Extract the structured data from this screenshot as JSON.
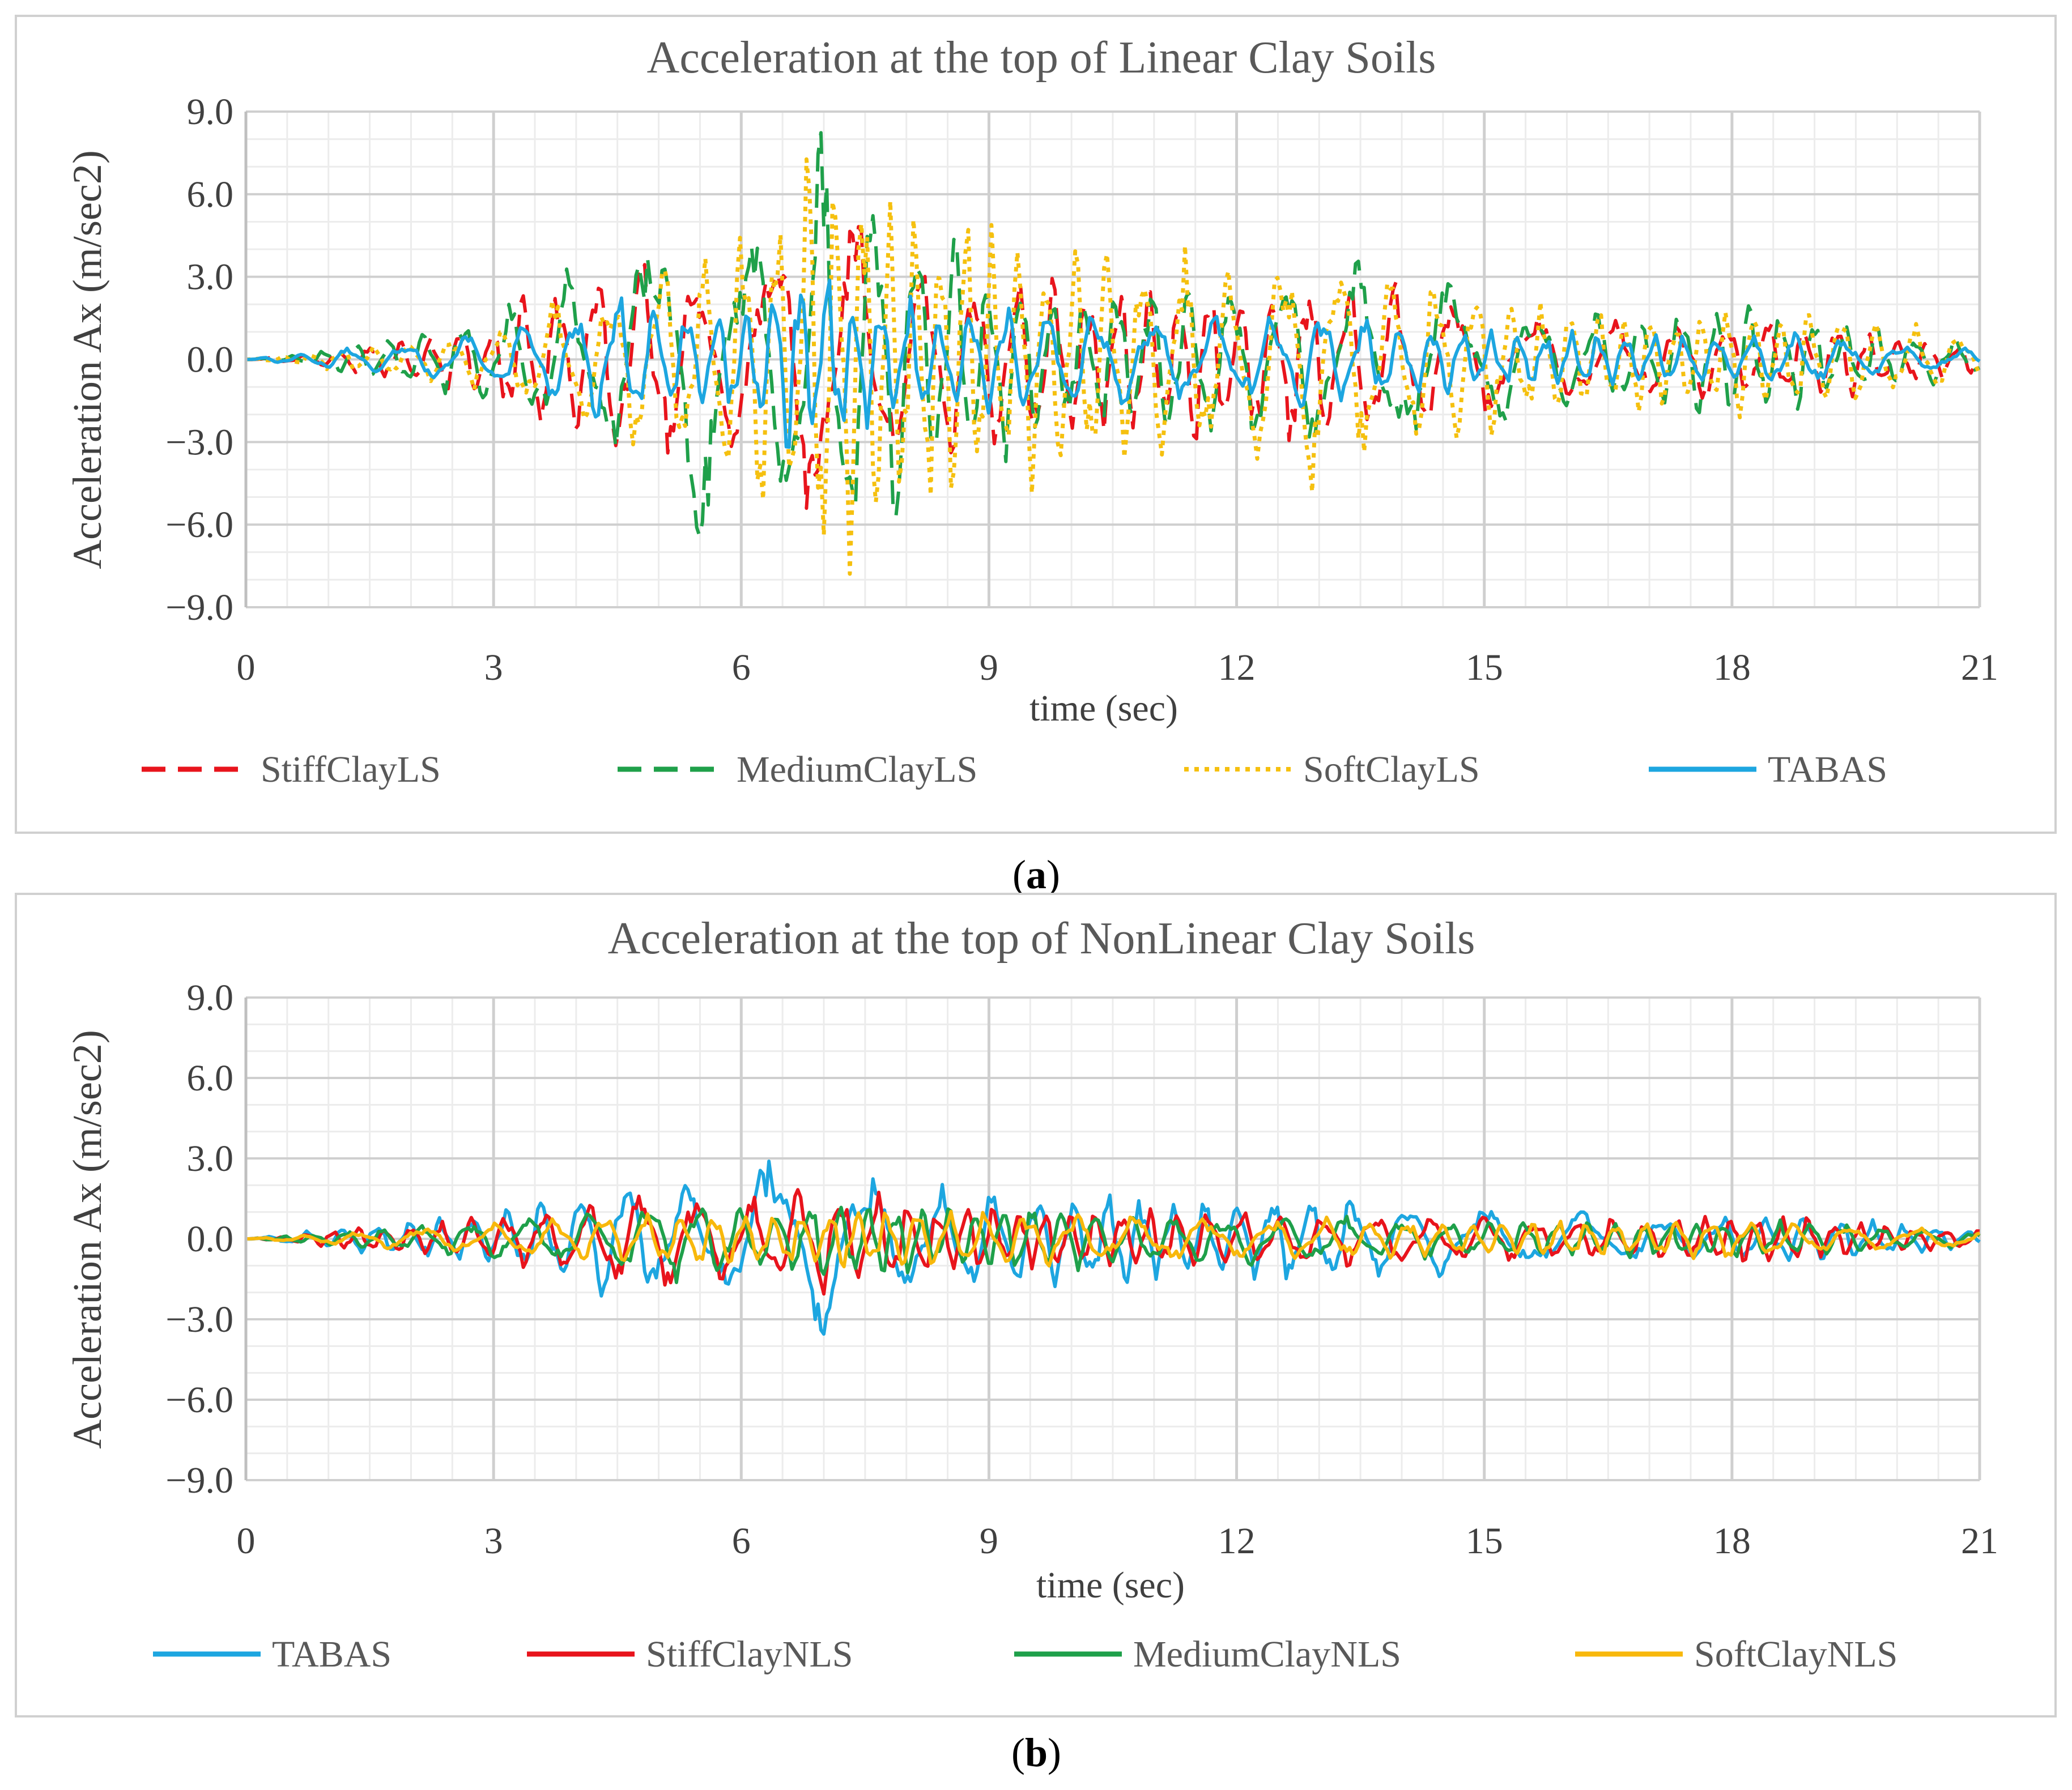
{
  "figure": {
    "panels": [
      {
        "caption_letter": "a"
      },
      {
        "caption_letter": "b"
      }
    ]
  },
  "chart_data": [
    {
      "type": "line",
      "title": "Acceleration at the top of Linear Clay Soils",
      "xlabel": "time (sec)",
      "ylabel": "Acceleration Ax (m/sec2)",
      "xlim": [
        0,
        21
      ],
      "ylim": [
        -9,
        9
      ],
      "x_ticks": [
        "0",
        "3",
        "6",
        "9",
        "12",
        "15",
        "18",
        "21"
      ],
      "y_ticks": [
        "9.0",
        "6.0",
        "3.0",
        "0.0",
        "−3.0",
        "−6.0",
        "−9.0"
      ],
      "grid": true,
      "legend_position": "bottom",
      "series": [
        {
          "name": "StiffClayLS",
          "color": "#E8141C",
          "dash": "dashed",
          "envelope": {
            "t": [
              0,
              0.5,
              1,
              2,
              3,
              3.5,
              4,
              4.5,
              5,
              5.5,
              6,
              6.5,
              7,
              7.5,
              8,
              8.5,
              9,
              10,
              11,
              12,
              13,
              14,
              15,
              16,
              17,
              18,
              19,
              20,
              21
            ],
            "a": [
              0,
              0.1,
              0.35,
              0.7,
              1.4,
              2.4,
              2.8,
              3.2,
              3.6,
              3.2,
              3.5,
              4.5,
              5.6,
              4.6,
              3.8,
              3.2,
              2.9,
              2.8,
              2.6,
              2.6,
              2.8,
              2.4,
              1.9,
              1.4,
              1.3,
              1.4,
              1.4,
              0.9,
              0.5
            ]
          }
        },
        {
          "name": "MediumClayLS",
          "color": "#1FA04A",
          "dash": "dashed",
          "envelope": {
            "t": [
              0,
              0.5,
              1,
              2,
              3,
              3.5,
              4,
              4.5,
              5,
              5.5,
              6,
              6.5,
              7,
              7.5,
              8,
              8.5,
              9,
              10,
              11,
              12,
              13,
              14,
              15,
              16,
              17,
              18,
              19,
              20,
              21
            ],
            "a": [
              0,
              0.1,
              0.35,
              0.9,
              1.5,
              2.4,
              2.8,
              3.5,
              4.8,
              5.2,
              4.2,
              5.0,
              7.0,
              6.0,
              5.2,
              4.0,
              3.2,
              2.6,
              2.7,
              2.6,
              3.2,
              3.1,
              2.2,
              1.6,
              1.5,
              1.9,
              1.5,
              1.0,
              0.6
            ]
          }
        },
        {
          "name": "SoftClayLS",
          "color": "#F5C00F",
          "dash": "dotted",
          "envelope": {
            "t": [
              0,
              0.5,
              1,
              2,
              3,
              3.5,
              4,
              4.5,
              5,
              5.5,
              6,
              6.5,
              7,
              7.5,
              8,
              8.5,
              9,
              10,
              11,
              12,
              13,
              14,
              15,
              16,
              17,
              18,
              19,
              20,
              21
            ],
            "a": [
              0,
              0.1,
              0.3,
              0.6,
              1.0,
              1.7,
              2.0,
              2.4,
              3.4,
              3.5,
              4.5,
              5.2,
              7.8,
              7.2,
              5.0,
              5.8,
              4.5,
              4.0,
              3.6,
              3.2,
              4.0,
              2.9,
              2.6,
              1.8,
              1.7,
              1.9,
              1.8,
              1.2,
              0.8
            ]
          }
        },
        {
          "name": "TABAS",
          "color": "#1DA6E0",
          "dash": "solid",
          "envelope": {
            "t": [
              0,
              0.5,
              1,
              2,
              3,
              3.5,
              4,
              4.5,
              5,
              5.5,
              6,
              6.5,
              7,
              7.5,
              8,
              8.5,
              9,
              10,
              11,
              12,
              13,
              14,
              15,
              16,
              17,
              18,
              19,
              20,
              21
            ],
            "a": [
              0,
              0.15,
              0.35,
              0.6,
              0.9,
              1.3,
              1.6,
              2.2,
              1.8,
              1.7,
              2.0,
              3.1,
              2.9,
              2.3,
              2.0,
              1.6,
              1.8,
              1.6,
              1.4,
              1.4,
              1.6,
              1.3,
              1.0,
              0.9,
              0.8,
              0.8,
              0.8,
              0.5,
              0.3
            ]
          }
        }
      ]
    },
    {
      "type": "line",
      "title": "Acceleration at the top of NonLinear Clay Soils",
      "xlabel": "time (sec)",
      "ylabel": "Acceleration Ax (m/sec2)",
      "xlim": [
        0,
        21
      ],
      "ylim": [
        -9,
        9
      ],
      "x_ticks": [
        "0",
        "3",
        "6",
        "9",
        "12",
        "15",
        "18",
        "21"
      ],
      "y_ticks": [
        "9.0",
        "6.0",
        "3.0",
        "0.0",
        "−3.0",
        "−6.0",
        "−9.0"
      ],
      "grid": true,
      "legend_position": "bottom",
      "series": [
        {
          "name": "TABAS",
          "color": "#1DA6E0",
          "dash": "solid",
          "envelope": {
            "t": [
              0,
              0.5,
              1,
              2,
              3,
              3.5,
              4,
              4.5,
              5,
              5.5,
              6,
              6.5,
              7,
              7.5,
              8,
              8.5,
              9,
              10,
              11,
              12,
              13,
              14,
              15,
              16,
              17,
              18,
              19,
              20,
              21
            ],
            "a": [
              0,
              0.15,
              0.35,
              0.6,
              0.9,
              1.3,
              1.6,
              2.2,
              1.8,
              1.7,
              2.0,
              3.1,
              2.9,
              2.3,
              2.0,
              1.6,
              1.8,
              1.6,
              1.4,
              1.4,
              1.6,
              1.3,
              1.0,
              0.9,
              0.8,
              0.8,
              0.8,
              0.5,
              0.3
            ]
          }
        },
        {
          "name": "StiffClayNLS",
          "color": "#E8141C",
          "dash": "solid",
          "envelope": {
            "t": [
              0,
              0.5,
              1,
              2,
              3,
              3.5,
              4,
              4.5,
              5,
              5.5,
              6,
              6.5,
              7,
              7.5,
              8,
              8.5,
              9,
              10,
              11,
              12,
              13,
              14,
              15,
              16,
              17,
              18,
              19,
              20,
              21
            ],
            "a": [
              0,
              0.1,
              0.3,
              0.5,
              0.8,
              0.9,
              1.2,
              1.5,
              1.9,
              1.6,
              1.3,
              1.5,
              2.0,
              1.6,
              1.4,
              1.2,
              1.1,
              1.1,
              1.0,
              0.9,
              0.9,
              0.8,
              0.8,
              0.7,
              0.7,
              0.9,
              0.7,
              0.4,
              0.3
            ]
          }
        },
        {
          "name": "MediumClayNLS",
          "color": "#1FA04A",
          "dash": "solid",
          "envelope": {
            "t": [
              0,
              0.5,
              1,
              2,
              3,
              3.5,
              4,
              4.5,
              5,
              5.5,
              6,
              6.5,
              7,
              7.5,
              8,
              8.5,
              9,
              10,
              11,
              12,
              13,
              14,
              15,
              16,
              17,
              18,
              19,
              20,
              21
            ],
            "a": [
              0,
              0.1,
              0.25,
              0.45,
              0.7,
              0.8,
              1.0,
              1.2,
              1.4,
              1.3,
              1.1,
              1.2,
              1.4,
              1.3,
              1.2,
              1.1,
              1.1,
              1.0,
              0.9,
              0.8,
              0.8,
              0.7,
              0.6,
              0.6,
              0.6,
              0.6,
              0.6,
              0.35,
              0.25
            ]
          }
        },
        {
          "name": "SoftClayNLS",
          "color": "#F8B80C",
          "dash": "solid",
          "envelope": {
            "t": [
              0,
              0.5,
              1,
              2,
              3,
              3.5,
              4,
              4.5,
              5,
              5.5,
              6,
              6.5,
              7,
              7.5,
              8,
              8.5,
              9,
              10,
              11,
              12,
              13,
              14,
              15,
              16,
              17,
              18,
              19,
              20,
              21
            ],
            "a": [
              0,
              0.1,
              0.2,
              0.4,
              0.5,
              0.6,
              0.7,
              0.8,
              0.9,
              0.9,
              0.9,
              0.9,
              1.0,
              1.0,
              0.9,
              0.9,
              0.9,
              0.8,
              0.8,
              0.7,
              0.7,
              0.6,
              0.6,
              0.6,
              0.6,
              0.7,
              0.5,
              0.4,
              0.3
            ]
          }
        }
      ]
    }
  ]
}
